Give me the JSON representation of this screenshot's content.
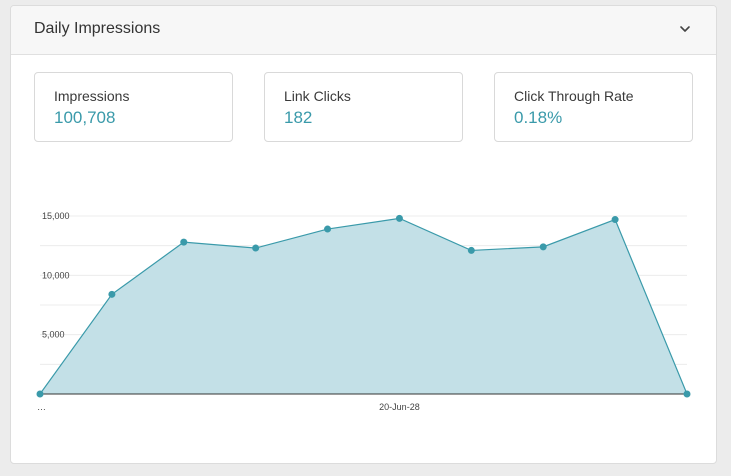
{
  "header": {
    "title": "Daily Impressions",
    "collapse_icon": "chevron-down-icon"
  },
  "stats": [
    {
      "label": "Impressions",
      "value": "100,708"
    },
    {
      "label": "Link Clicks",
      "value": "182"
    },
    {
      "label": "Click Through Rate",
      "value": "0.18%"
    }
  ],
  "colors": {
    "accent": "#3a9aaa",
    "area_fill": "#c3e0e7",
    "line": "#3a9aaa"
  },
  "chart_data": {
    "type": "area",
    "x": [
      "…",
      "",
      "",
      "",
      "",
      "20-Jun-28",
      "",
      "",
      "",
      ""
    ],
    "x_tick_labels": [
      "…",
      "20-Jun-28"
    ],
    "values": [
      0,
      8400,
      12800,
      12300,
      13900,
      14800,
      12100,
      12400,
      14700,
      0
    ],
    "y_ticks": [
      5000,
      10000,
      15000
    ],
    "y_tick_labels": [
      "5,000",
      "10,000",
      "15,000"
    ],
    "ylim": [
      0,
      15000
    ],
    "grid": true,
    "title": "",
    "xlabel": "",
    "ylabel": ""
  }
}
